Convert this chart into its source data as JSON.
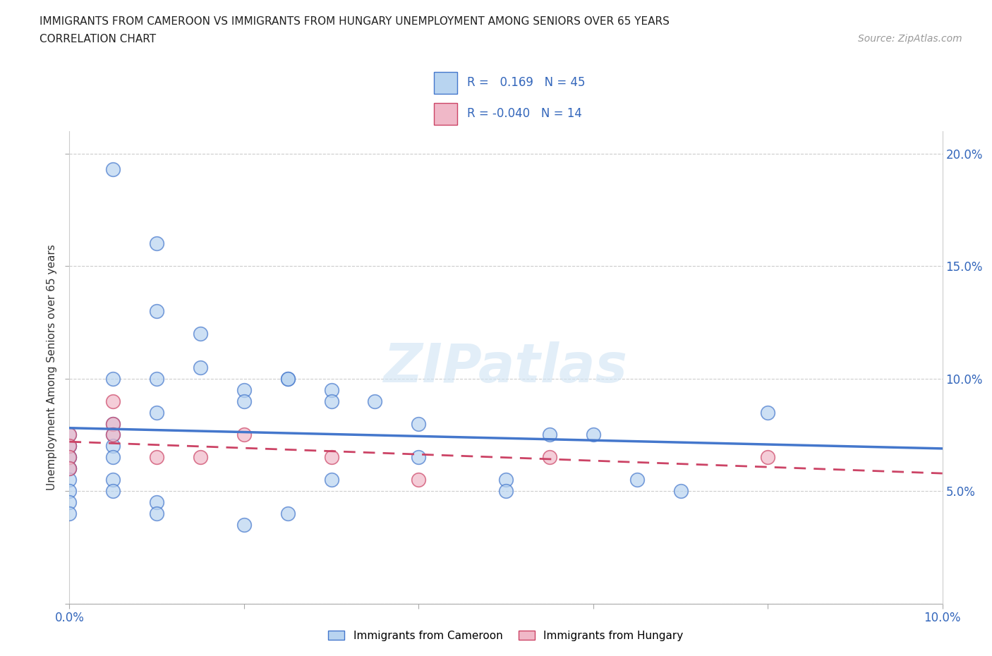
{
  "title_line1": "IMMIGRANTS FROM CAMEROON VS IMMIGRANTS FROM HUNGARY UNEMPLOYMENT AMONG SENIORS OVER 65 YEARS",
  "title_line2": "CORRELATION CHART",
  "source_text": "Source: ZipAtlas.com",
  "ylabel": "Unemployment Among Seniors over 65 years",
  "xlim": [
    0.0,
    0.1
  ],
  "ylim": [
    0.0,
    0.21
  ],
  "xticks": [
    0.0,
    0.02,
    0.04,
    0.06,
    0.08,
    0.1
  ],
  "yticks": [
    0.0,
    0.05,
    0.1,
    0.15,
    0.2
  ],
  "watermark": "ZIPatlas",
  "color_cameroon": "#b8d4f0",
  "color_hungary": "#f0b8c8",
  "color_line_cameroon": "#4477cc",
  "color_line_hungary": "#cc4466",
  "cameroon_x": [
    0.005,
    0.0,
    0.0,
    0.0,
    0.0,
    0.0,
    0.0,
    0.0,
    0.0,
    0.0,
    0.005,
    0.005,
    0.005,
    0.005,
    0.005,
    0.01,
    0.01,
    0.01,
    0.01,
    0.015,
    0.015,
    0.02,
    0.02,
    0.025,
    0.025,
    0.03,
    0.03,
    0.035,
    0.04,
    0.04,
    0.05,
    0.05,
    0.055,
    0.06,
    0.065,
    0.07,
    0.08,
    0.0,
    0.0,
    0.005,
    0.005,
    0.01,
    0.01,
    0.02,
    0.025,
    0.03
  ],
  "cameroon_y": [
    0.193,
    0.07,
    0.065,
    0.065,
    0.07,
    0.075,
    0.06,
    0.06,
    0.055,
    0.05,
    0.1,
    0.08,
    0.075,
    0.07,
    0.065,
    0.16,
    0.13,
    0.1,
    0.085,
    0.12,
    0.105,
    0.095,
    0.09,
    0.1,
    0.1,
    0.095,
    0.09,
    0.09,
    0.08,
    0.065,
    0.055,
    0.05,
    0.075,
    0.075,
    0.055,
    0.05,
    0.085,
    0.045,
    0.04,
    0.055,
    0.05,
    0.045,
    0.04,
    0.035,
    0.04,
    0.055
  ],
  "hungary_x": [
    0.0,
    0.0,
    0.0,
    0.0,
    0.005,
    0.005,
    0.005,
    0.01,
    0.015,
    0.02,
    0.03,
    0.04,
    0.055,
    0.08
  ],
  "hungary_y": [
    0.075,
    0.07,
    0.065,
    0.06,
    0.09,
    0.08,
    0.075,
    0.065,
    0.065,
    0.075,
    0.065,
    0.055,
    0.065,
    0.065
  ]
}
